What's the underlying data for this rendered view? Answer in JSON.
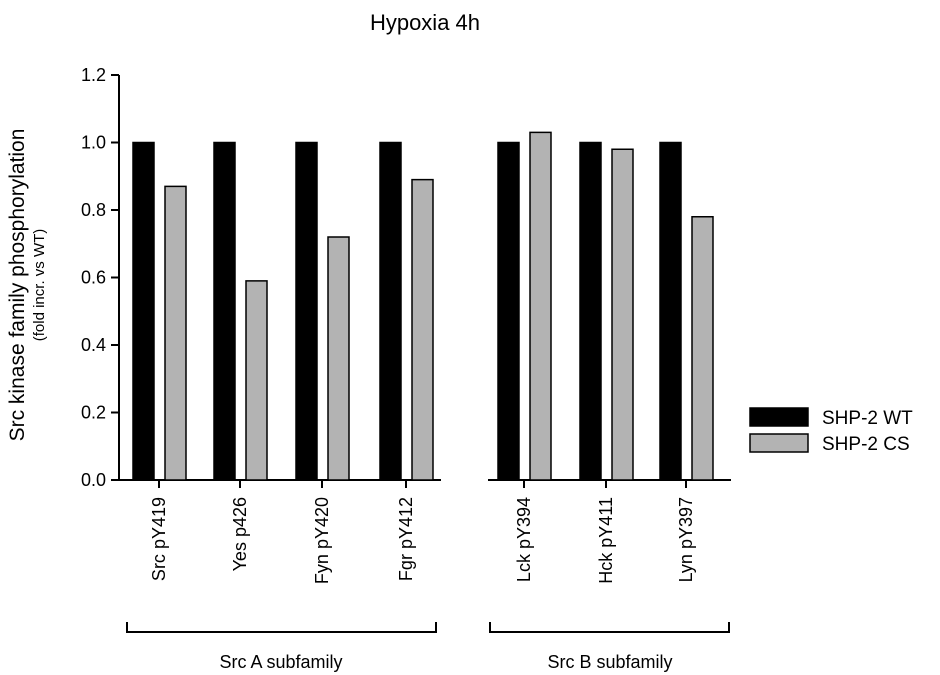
{
  "chart_data": {
    "type": "bar",
    "title": "Hypoxia 4h",
    "ylabel": "Src kinase family phosphorylation",
    "ylabel_sub": "(fold incr. vs WT)",
    "ylim": [
      0,
      1.2
    ],
    "yticks": [
      "0.0",
      "0.2",
      "0.4",
      "0.6",
      "0.8",
      "1.0",
      "1.2"
    ],
    "grid": false,
    "legend_position": "right",
    "categories": [
      "Src pY419",
      "Yes p426",
      "Fyn pY420",
      "Fgr pY412",
      "Lck pY394",
      "Hck pY411",
      "Lyn pY397"
    ],
    "groups": [
      {
        "label": "Src A subfamily",
        "categories": [
          "Src pY419",
          "Yes p426",
          "Fyn pY420",
          "Fgr pY412"
        ]
      },
      {
        "label": "Src B subfamily",
        "categories": [
          "Lck pY394",
          "Hck pY411",
          "Lyn pY397"
        ]
      }
    ],
    "series": [
      {
        "name": "SHP-2 WT",
        "color": "#000000",
        "values": [
          1.0,
          1.0,
          1.0,
          1.0,
          1.0,
          1.0,
          1.0
        ]
      },
      {
        "name": "SHP-2 CS",
        "color": "#b3b3b3",
        "values": [
          0.87,
          0.59,
          0.72,
          0.89,
          1.03,
          0.98,
          0.78
        ]
      }
    ]
  }
}
